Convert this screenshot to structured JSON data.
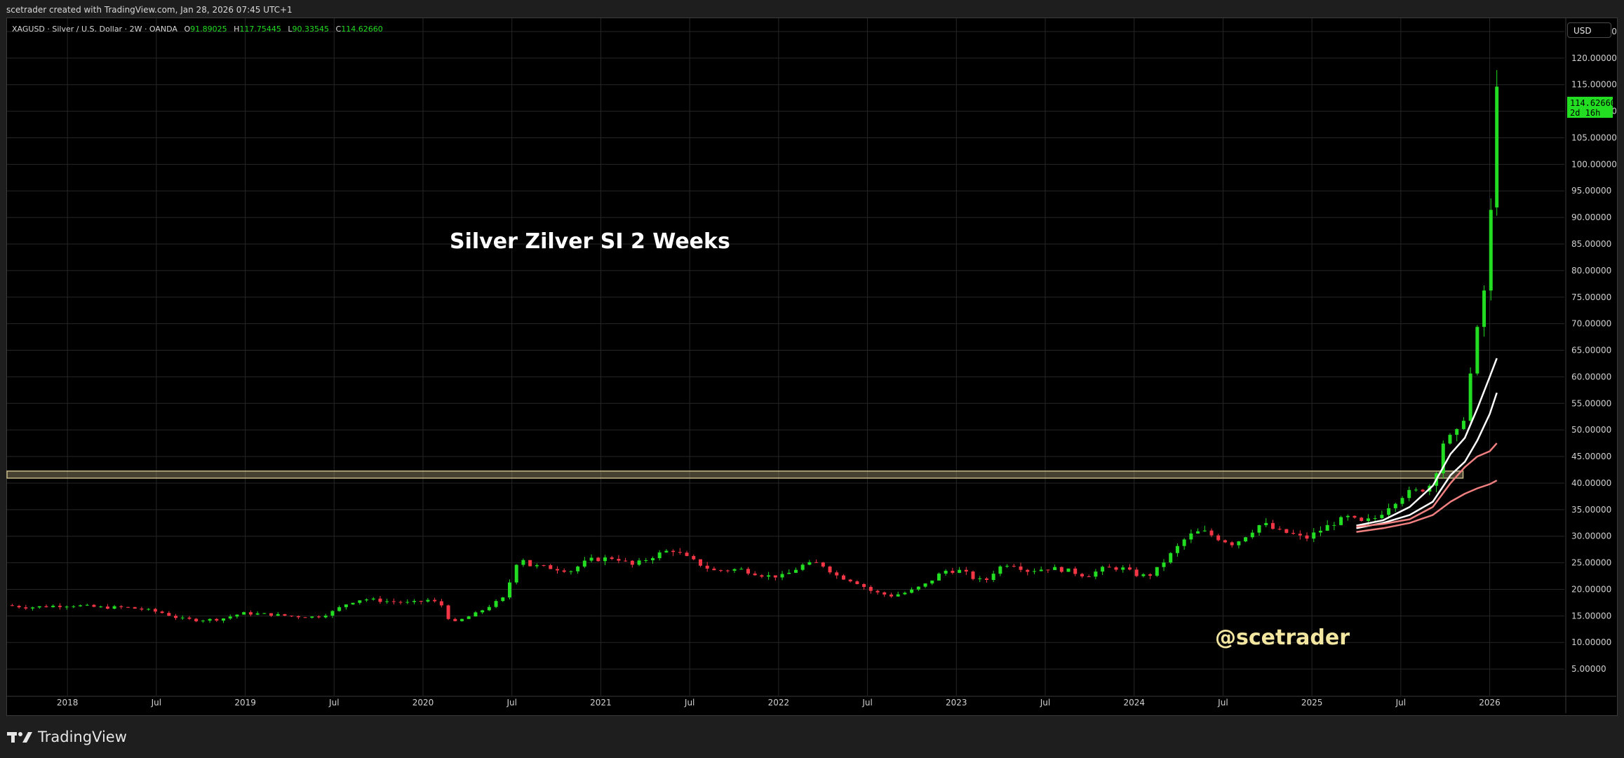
{
  "header": {
    "created_by": "scetrader created with TradingView.com, Jan 28, 2026 07:45 UTC+1"
  },
  "symbol_line": {
    "symbol": "XAGUSD · Silver / U.S. Dollar · 2W · OANDA",
    "o_label": "O",
    "o_value": "91.89025",
    "h_label": "H",
    "h_value": "117.75445",
    "l_label": "L",
    "l_value": "90.33545",
    "c_label": "C",
    "c_value": "114.62660"
  },
  "currency": "USD",
  "last_price": {
    "value": "114.62660",
    "countdown": "2d 16h"
  },
  "annotations": {
    "title": "Silver Zilver SI 2 Weeks",
    "handle": "@scetrader"
  },
  "brand": "TradingView",
  "colors": {
    "up": "#22dd22",
    "down": "#f23645",
    "header_ohlc": "#22dd22",
    "band": "#c8b98a",
    "handle": "#f2e6a0",
    "ma_fast": "#ffffff",
    "ma_slow": "#f08080"
  },
  "chart_data": {
    "type": "candlestick",
    "interval": "2W",
    "x_axis_labels": [
      "2018",
      "Jul",
      "2019",
      "Jul",
      "2020",
      "Jul",
      "2021",
      "Jul",
      "2022",
      "Jul",
      "2023",
      "Jul",
      "2024",
      "Jul",
      "2025",
      "Jul",
      "2026"
    ],
    "y_ticks": [
      "125.00000",
      "120.00000",
      "115.00000",
      "110.00000",
      "105.00000",
      "100.00000",
      "95.00000",
      "90.00000",
      "85.00000",
      "80.00000",
      "75.00000",
      "70.00000",
      "65.00000",
      "60.00000",
      "55.00000",
      "50.00000",
      "45.00000",
      "40.00000",
      "35.00000",
      "30.00000",
      "25.00000",
      "20.00000",
      "15.00000",
      "10.00000",
      "5.00000"
    ],
    "ylim": [
      0,
      127.5
    ],
    "xlim": [
      2017.66,
      2026.42
    ],
    "horizontal_band": {
      "low": 41.2,
      "high": 42.0,
      "x_end": 2025.85
    },
    "anchors": [
      [
        2017.67,
        17.0
      ],
      [
        2017.8,
        16.6
      ],
      [
        2017.95,
        16.9
      ],
      [
        2018.05,
        17.0
      ],
      [
        2018.2,
        16.6
      ],
      [
        2018.35,
        16.6
      ],
      [
        2018.45,
        16.2
      ],
      [
        2018.55,
        15.6
      ],
      [
        2018.65,
        14.5
      ],
      [
        2018.75,
        14.2
      ],
      [
        2018.88,
        14.4
      ],
      [
        2019.0,
        15.5
      ],
      [
        2019.15,
        15.3
      ],
      [
        2019.3,
        14.9
      ],
      [
        2019.42,
        14.8
      ],
      [
        2019.5,
        15.6
      ],
      [
        2019.6,
        17.5
      ],
      [
        2019.68,
        18.2
      ],
      [
        2019.8,
        17.8
      ],
      [
        2019.95,
        17.4
      ],
      [
        2020.05,
        18.0
      ],
      [
        2020.12,
        17.2
      ],
      [
        2020.18,
        13.5
      ],
      [
        2020.25,
        14.5
      ],
      [
        2020.32,
        15.5
      ],
      [
        2020.4,
        17.0
      ],
      [
        2020.47,
        18.3
      ],
      [
        2020.52,
        22.5
      ],
      [
        2020.56,
        26.5
      ],
      [
        2020.62,
        24.5
      ],
      [
        2020.75,
        24.0
      ],
      [
        2020.85,
        23.5
      ],
      [
        2020.95,
        25.5
      ],
      [
        2021.1,
        26.0
      ],
      [
        2021.2,
        24.5
      ],
      [
        2021.33,
        26.5
      ],
      [
        2021.42,
        27.5
      ],
      [
        2021.5,
        26.0
      ],
      [
        2021.65,
        23.5
      ],
      [
        2021.8,
        23.8
      ],
      [
        2021.95,
        22.5
      ],
      [
        2022.05,
        22.5
      ],
      [
        2022.15,
        24.5
      ],
      [
        2022.25,
        25.0
      ],
      [
        2022.35,
        22.5
      ],
      [
        2022.45,
        21.5
      ],
      [
        2022.55,
        19.5
      ],
      [
        2022.65,
        18.8
      ],
      [
        2022.75,
        19.5
      ],
      [
        2022.85,
        21.0
      ],
      [
        2022.95,
        23.5
      ],
      [
        2023.05,
        23.5
      ],
      [
        2023.12,
        22.0
      ],
      [
        2023.18,
        21.5
      ],
      [
        2023.25,
        24.0
      ],
      [
        2023.32,
        25.0
      ],
      [
        2023.42,
        23.5
      ],
      [
        2023.55,
        24.0
      ],
      [
        2023.65,
        23.5
      ],
      [
        2023.75,
        22.5
      ],
      [
        2023.85,
        24.0
      ],
      [
        2023.95,
        24.0
      ],
      [
        2024.05,
        22.5
      ],
      [
        2024.12,
        22.8
      ],
      [
        2024.18,
        25.0
      ],
      [
        2024.25,
        27.5
      ],
      [
        2024.32,
        30.0
      ],
      [
        2024.4,
        31.0
      ],
      [
        2024.5,
        29.5
      ],
      [
        2024.58,
        28.5
      ],
      [
        2024.66,
        30.5
      ],
      [
        2024.74,
        32.5
      ],
      [
        2024.82,
        31.0
      ],
      [
        2024.9,
        30.5
      ],
      [
        2024.98,
        29.5
      ],
      [
        2025.06,
        31.0
      ],
      [
        2025.14,
        32.5
      ],
      [
        2025.22,
        33.5
      ],
      [
        2025.3,
        32.5
      ],
      [
        2025.38,
        33.5
      ],
      [
        2025.46,
        36.0
      ],
      [
        2025.54,
        38.0
      ],
      [
        2025.62,
        38.5
      ],
      [
        2025.7,
        40.0
      ],
      [
        2025.76,
        48.0
      ],
      [
        2025.8,
        48.5
      ],
      [
        2025.86,
        50.0
      ],
      [
        2025.9,
        58.0
      ],
      [
        2025.94,
        67.0
      ],
      [
        2025.98,
        73.0
      ],
      [
        2026.02,
        90.0
      ],
      [
        2026.04,
        92.0
      ]
    ],
    "last_candle": {
      "x": 2026.04,
      "open": 91.89025,
      "high": 117.75445,
      "low": 90.33545,
      "close": 114.6266
    },
    "moving_averages": [
      {
        "color_key": "ma_fast",
        "points": [
          [
            2025.25,
            32.0
          ],
          [
            2025.4,
            33.0
          ],
          [
            2025.55,
            35.5
          ],
          [
            2025.68,
            39.5
          ],
          [
            2025.78,
            45.5
          ],
          [
            2025.86,
            48.5
          ],
          [
            2025.93,
            54.0
          ],
          [
            2026.0,
            60.0
          ],
          [
            2026.04,
            63.5
          ]
        ]
      },
      {
        "color_key": "ma_fast",
        "points": [
          [
            2025.25,
            31.5
          ],
          [
            2025.4,
            32.5
          ],
          [
            2025.55,
            34.0
          ],
          [
            2025.68,
            36.5
          ],
          [
            2025.78,
            41.5
          ],
          [
            2025.86,
            44.0
          ],
          [
            2025.93,
            48.0
          ],
          [
            2026.0,
            53.0
          ],
          [
            2026.04,
            57.0
          ]
        ]
      },
      {
        "color_key": "ma_slow",
        "points": [
          [
            2025.25,
            31.8
          ],
          [
            2025.4,
            32.3
          ],
          [
            2025.55,
            33.2
          ],
          [
            2025.68,
            35.5
          ],
          [
            2025.78,
            40.0
          ],
          [
            2025.86,
            43.0
          ],
          [
            2025.93,
            45.0
          ],
          [
            2026.0,
            46.0
          ],
          [
            2026.04,
            47.5
          ]
        ]
      },
      {
        "color_key": "ma_slow",
        "points": [
          [
            2025.25,
            30.8
          ],
          [
            2025.4,
            31.5
          ],
          [
            2025.55,
            32.5
          ],
          [
            2025.68,
            34.0
          ],
          [
            2025.78,
            36.5
          ],
          [
            2025.86,
            38.0
          ],
          [
            2025.93,
            39.0
          ],
          [
            2026.0,
            39.8
          ],
          [
            2026.04,
            40.5
          ]
        ]
      }
    ]
  }
}
